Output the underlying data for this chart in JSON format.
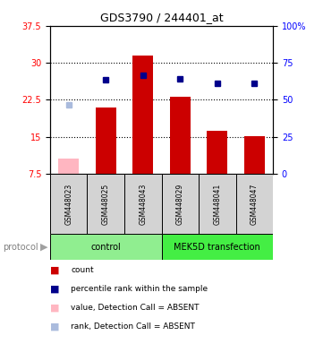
{
  "title": "GDS3790 / 244401_at",
  "samples": [
    "GSM448023",
    "GSM448025",
    "GSM448043",
    "GSM448029",
    "GSM448041",
    "GSM448047"
  ],
  "bar_values": [
    null,
    21.0,
    31.5,
    23.2,
    16.2,
    15.2
  ],
  "bar_absent_values": [
    10.5,
    null,
    null,
    null,
    null,
    null
  ],
  "dot_values_left": [
    null,
    26.5,
    27.5,
    26.7,
    25.8,
    25.8
  ],
  "dot_absent_values_left": [
    21.5,
    null,
    null,
    null,
    null,
    null
  ],
  "ylim_left": [
    7.5,
    37.5
  ],
  "ylim_right": [
    0,
    100
  ],
  "yticks_left": [
    7.5,
    15.0,
    22.5,
    30.0,
    37.5
  ],
  "ytick_labels_left": [
    "7.5",
    "15",
    "22.5",
    "30",
    "37.5"
  ],
  "yticks_right": [
    0,
    25,
    50,
    75,
    100
  ],
  "ytick_labels_right": [
    "0",
    "25",
    "50",
    "75",
    "100%"
  ],
  "hlines": [
    15.0,
    22.5,
    30.0
  ],
  "bar_color": "#CC0000",
  "bar_absent_color": "#FFB6C1",
  "dot_color": "#00008B",
  "dot_absent_color": "#AABBDD",
  "control_label": "control",
  "mek_label": "MEK5D transfection",
  "protocol_label": "protocol",
  "control_color": "#90EE90",
  "mek_color": "#44EE44",
  "sample_bg": "#D3D3D3",
  "legend_items": [
    {
      "label": "count",
      "color": "#CC0000"
    },
    {
      "label": "percentile rank within the sample",
      "color": "#00008B"
    },
    {
      "label": "value, Detection Call = ABSENT",
      "color": "#FFB6C1"
    },
    {
      "label": "rank, Detection Call = ABSENT",
      "color": "#AABBDD"
    }
  ],
  "bar_width": 0.55,
  "bar_bottom": 7.5
}
